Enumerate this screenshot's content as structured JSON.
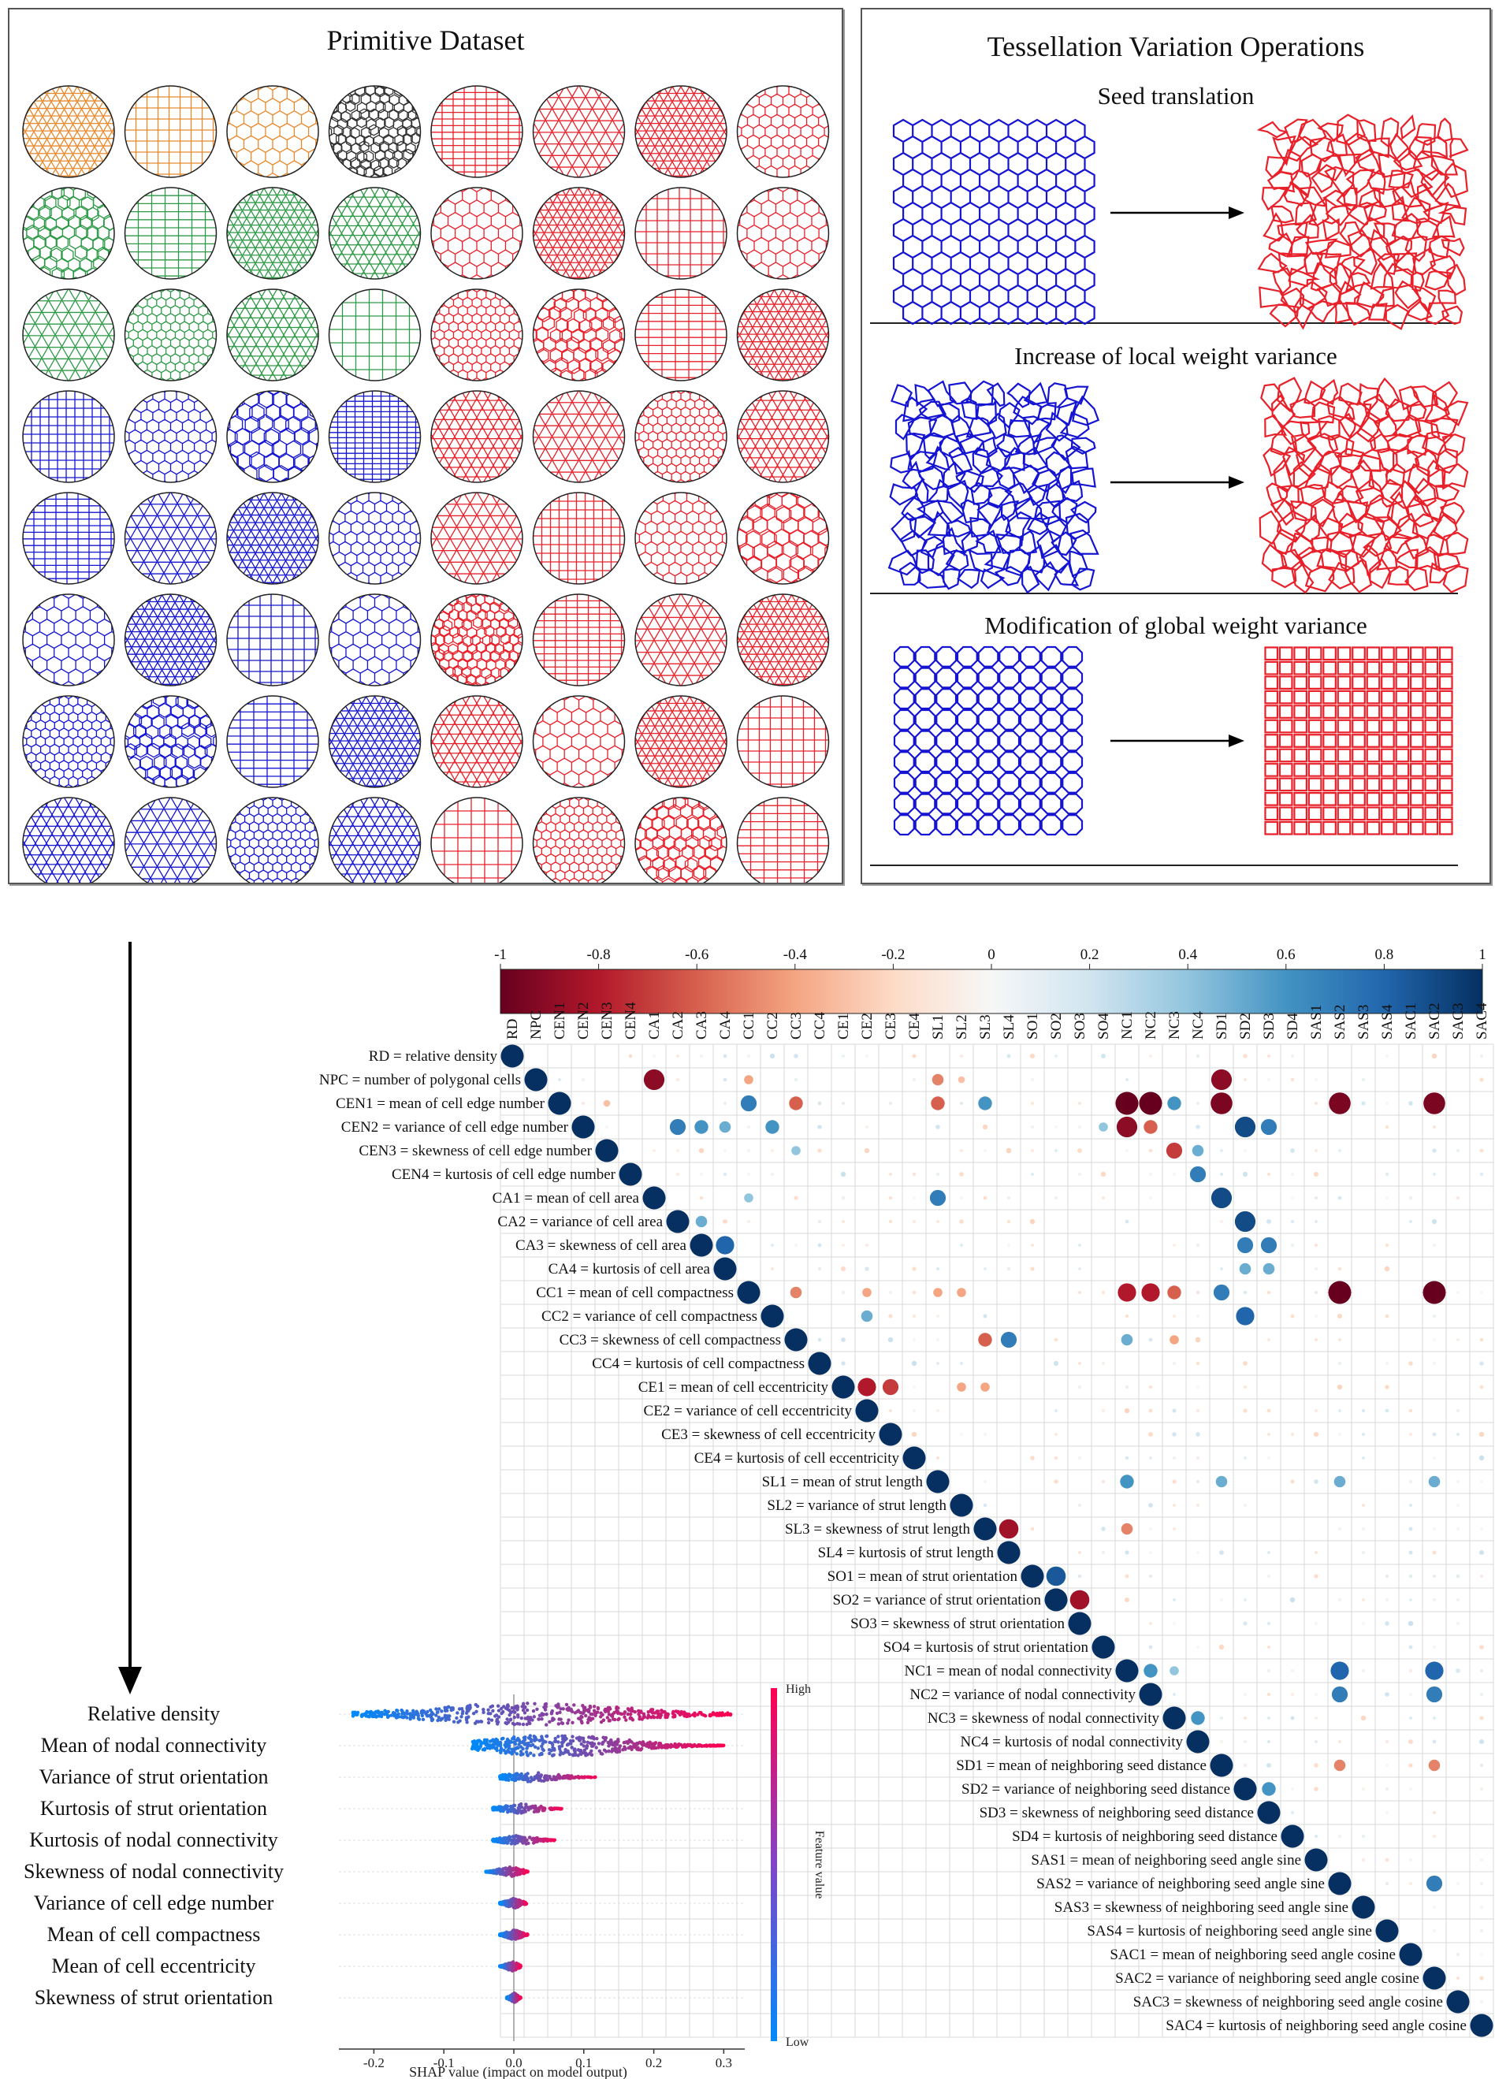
{
  "primitive": {
    "title": "Primitive Dataset",
    "rows": 8,
    "cols": 8,
    "colors": [
      [
        "orange",
        "orange",
        "orange",
        "black",
        "red",
        "red",
        "red",
        "red"
      ],
      [
        "green",
        "green",
        "green",
        "green",
        "red",
        "red",
        "red",
        "red"
      ],
      [
        "green",
        "green",
        "green",
        "green",
        "red",
        "red",
        "red",
        "red"
      ],
      [
        "blue",
        "blue",
        "blue",
        "blue",
        "red",
        "red",
        "red",
        "red"
      ],
      [
        "blue",
        "blue",
        "blue",
        "blue",
        "red",
        "red",
        "red",
        "red"
      ],
      [
        "blue",
        "blue",
        "blue",
        "blue",
        "red",
        "red",
        "red",
        "red"
      ],
      [
        "blue",
        "blue",
        "blue",
        "blue",
        "red",
        "red",
        "red",
        "red"
      ],
      [
        "blue",
        "blue",
        "blue",
        "blue",
        "red",
        "red",
        "red",
        "red"
      ]
    ],
    "palette": {
      "orange": "#e8892c",
      "black": "#333333",
      "green": "#2e9a47",
      "blue": "#1414d2",
      "red": "#e8202a"
    }
  },
  "variation": {
    "title": "Tessellation Variation Operations",
    "operations": [
      {
        "name": "Seed translation"
      },
      {
        "name": "Increase of local weight variance"
      },
      {
        "name": "Modification of global weight variance"
      }
    ]
  },
  "correlation": {
    "colorbar_ticks": [
      "-1",
      "-0.8",
      "-0.6",
      "-0.4",
      "-0.2",
      "0",
      "0.2",
      "0.4",
      "0.6",
      "0.8",
      "1"
    ],
    "features": [
      {
        "code": "RD",
        "label": "RD = relative density"
      },
      {
        "code": "NPC",
        "label": "NPC = number of polygonal cells"
      },
      {
        "code": "CEN1",
        "label": "CEN1 = mean of cell edge number"
      },
      {
        "code": "CEN2",
        "label": "CEN2 = variance of cell edge number"
      },
      {
        "code": "CEN3",
        "label": "CEN3 = skewness of cell edge number"
      },
      {
        "code": "CEN4",
        "label": "CEN4 = kurtosis of cell edge number"
      },
      {
        "code": "CA1",
        "label": "CA1 = mean of cell area"
      },
      {
        "code": "CA2",
        "label": "CA2 = variance of cell area"
      },
      {
        "code": "CA3",
        "label": "CA3 = skewness of cell area"
      },
      {
        "code": "CA4",
        "label": "CA4 = kurtosis of cell area"
      },
      {
        "code": "CC1",
        "label": "CC1 = mean of cell compactness"
      },
      {
        "code": "CC2",
        "label": "CC2 = variance of cell compactness"
      },
      {
        "code": "CC3",
        "label": "CC3 = skewness of cell compactness"
      },
      {
        "code": "CC4",
        "label": "CC4 = kurtosis of cell compactness"
      },
      {
        "code": "CE1",
        "label": "CE1 = mean of cell eccentricity"
      },
      {
        "code": "CE2",
        "label": "CE2 = variance of cell eccentricity"
      },
      {
        "code": "CE3",
        "label": "CE3 = skewness of cell eccentricity"
      },
      {
        "code": "CE4",
        "label": "CE4 = kurtosis of cell eccentricity"
      },
      {
        "code": "SL1",
        "label": "SL1 = mean of strut length"
      },
      {
        "code": "SL2",
        "label": "SL2 = variance of strut length"
      },
      {
        "code": "SL3",
        "label": "SL3 = skewness of strut length"
      },
      {
        "code": "SL4",
        "label": "SL4 = kurtosis of strut length"
      },
      {
        "code": "SO1",
        "label": "SO1 = mean of strut orientation"
      },
      {
        "code": "SO2",
        "label": "SO2 = variance of strut orientation"
      },
      {
        "code": "SO3",
        "label": "SO3 = skewness of strut orientation"
      },
      {
        "code": "SO4",
        "label": "SO4 = kurtosis of strut orientation"
      },
      {
        "code": "NC1",
        "label": "NC1 = mean of nodal connectivity"
      },
      {
        "code": "NC2",
        "label": "NC2 = variance of nodal connectivity"
      },
      {
        "code": "NC3",
        "label": "NC3 = skewness of nodal connectivity"
      },
      {
        "code": "NC4",
        "label": "NC4 = kurtosis of nodal connectivity"
      },
      {
        "code": "SD1",
        "label": "SD1 = mean of neighboring seed distance"
      },
      {
        "code": "SD2",
        "label": "SD2 = variance of neighboring seed distance"
      },
      {
        "code": "SD3",
        "label": "SD3 = skewness of neighboring seed distance"
      },
      {
        "code": "SD4",
        "label": "SD4 = kurtosis of neighboring seed distance"
      },
      {
        "code": "SAS1",
        "label": "SAS1 = mean of neighboring seed angle sine"
      },
      {
        "code": "SAS2",
        "label": "SAS2 = variance of neighboring seed angle sine"
      },
      {
        "code": "SAS3",
        "label": "SAS3 = skewness of neighboring seed angle sine"
      },
      {
        "code": "SAS4",
        "label": "SAS4 = kurtosis of neighboring seed angle sine"
      },
      {
        "code": "SAC1",
        "label": "SAC1 = mean of neighboring seed angle cosine"
      },
      {
        "code": "SAC2",
        "label": "SAC2 = variance of neighboring seed angle cosine"
      },
      {
        "code": "SAC3",
        "label": "SAC3 = skewness of neighboring seed angle cosine"
      },
      {
        "code": "SAC4",
        "label": "SAC4 = kurtosis of neighboring seed angle cosine"
      }
    ],
    "strong": [
      [
        1,
        6,
        -0.9
      ],
      [
        1,
        30,
        -0.9
      ],
      [
        1,
        10,
        -0.4
      ],
      [
        1,
        18,
        -0.5
      ],
      [
        1,
        19,
        -0.3
      ],
      [
        2,
        10,
        0.7
      ],
      [
        2,
        12,
        -0.6
      ],
      [
        2,
        18,
        -0.6
      ],
      [
        2,
        20,
        0.6
      ],
      [
        2,
        26,
        -1.0
      ],
      [
        2,
        27,
        -1.0
      ],
      [
        2,
        28,
        0.6
      ],
      [
        2,
        30,
        -0.95
      ],
      [
        2,
        35,
        -0.95
      ],
      [
        2,
        39,
        -0.95
      ],
      [
        2,
        4,
        -0.3
      ],
      [
        3,
        7,
        0.7
      ],
      [
        3,
        8,
        0.6
      ],
      [
        3,
        9,
        0.5
      ],
      [
        3,
        11,
        0.6
      ],
      [
        3,
        25,
        0.4
      ],
      [
        3,
        26,
        -0.9
      ],
      [
        3,
        27,
        -0.6
      ],
      [
        3,
        31,
        0.9
      ],
      [
        3,
        32,
        0.7
      ],
      [
        4,
        12,
        0.4
      ],
      [
        4,
        28,
        -0.7
      ],
      [
        4,
        29,
        0.5
      ],
      [
        5,
        29,
        0.7
      ],
      [
        6,
        10,
        0.4
      ],
      [
        6,
        18,
        0.7
      ],
      [
        6,
        30,
        0.9
      ],
      [
        7,
        31,
        0.9
      ],
      [
        7,
        8,
        0.5
      ],
      [
        8,
        9,
        0.8
      ],
      [
        8,
        31,
        0.7
      ],
      [
        8,
        32,
        0.7
      ],
      [
        9,
        31,
        0.5
      ],
      [
        9,
        32,
        0.5
      ],
      [
        10,
        12,
        -0.5
      ],
      [
        10,
        15,
        -0.4
      ],
      [
        10,
        18,
        -0.4
      ],
      [
        10,
        19,
        -0.4
      ],
      [
        10,
        26,
        -0.8
      ],
      [
        10,
        27,
        -0.8
      ],
      [
        10,
        28,
        -0.6
      ],
      [
        10,
        30,
        0.7
      ],
      [
        10,
        35,
        -1.0
      ],
      [
        10,
        39,
        -1.0
      ],
      [
        11,
        31,
        0.8
      ],
      [
        11,
        15,
        0.5
      ],
      [
        12,
        20,
        -0.6
      ],
      [
        12,
        21,
        0.7
      ],
      [
        12,
        26,
        0.5
      ],
      [
        12,
        28,
        -0.4
      ],
      [
        14,
        15,
        -0.8
      ],
      [
        14,
        16,
        -0.7
      ],
      [
        14,
        19,
        -0.4
      ],
      [
        14,
        20,
        -0.4
      ],
      [
        18,
        26,
        0.6
      ],
      [
        18,
        30,
        0.5
      ],
      [
        18,
        35,
        0.5
      ],
      [
        18,
        39,
        0.5
      ],
      [
        20,
        21,
        -0.85
      ],
      [
        20,
        26,
        -0.5
      ],
      [
        22,
        23,
        0.85
      ],
      [
        23,
        24,
        -0.85
      ],
      [
        26,
        27,
        0.6
      ],
      [
        26,
        28,
        0.4
      ],
      [
        26,
        35,
        0.8
      ],
      [
        26,
        39,
        0.8
      ],
      [
        27,
        35,
        0.7
      ],
      [
        27,
        39,
        0.7
      ],
      [
        28,
        29,
        0.6
      ],
      [
        30,
        35,
        -0.5
      ],
      [
        30,
        39,
        -0.5
      ],
      [
        31,
        32,
        0.6
      ],
      [
        35,
        39,
        0.7
      ]
    ]
  },
  "shap": {
    "features": [
      "Relative density",
      "Mean of nodal connectivity",
      "Variance of strut orientation",
      "Kurtosis of strut orientation",
      "Kurtosis of nodal connectivity",
      "Skewness of nodal connectivity",
      "Variance of cell edge number",
      "Mean of cell compactness",
      "Mean of cell eccentricity",
      "Skewness of strut orientation"
    ],
    "extents": [
      [
        -0.23,
        0.31
      ],
      [
        -0.06,
        0.3
      ],
      [
        -0.02,
        0.12
      ],
      [
        -0.03,
        0.07
      ],
      [
        -0.03,
        0.06
      ],
      [
        -0.04,
        0.02
      ],
      [
        -0.02,
        0.02
      ],
      [
        -0.02,
        0.02
      ],
      [
        -0.02,
        0.01
      ],
      [
        -0.01,
        0.01
      ]
    ],
    "xlabel": "SHAP value (impact on model output)",
    "xticks": [
      "-0.2",
      "-0.1",
      "0.0",
      "0.1",
      "0.2",
      "0.3"
    ],
    "xtick_values": [
      -0.2,
      -0.1,
      0.0,
      0.1,
      0.2,
      0.3
    ],
    "colorbar_title": "Feature value",
    "colorbar_high": "High",
    "colorbar_low": "Low"
  }
}
